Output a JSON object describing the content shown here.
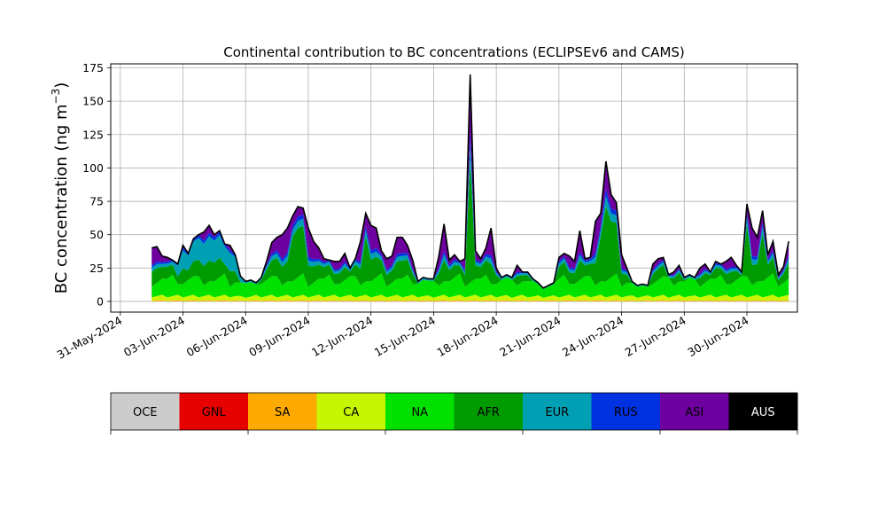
{
  "chart_data": {
    "type": "area",
    "stacked": true,
    "title": "Continental contribution to BC concentrations (ECLIPSEv6 and CAMS)",
    "ylabel_main": "BC concentration (ng m",
    "ylabel_sup": "−3",
    "ylabel_end": ")",
    "xlim": [
      "2024-05-30T13:00",
      "2024-07-02T10:00"
    ],
    "ylim": [
      -8,
      178
    ],
    "grid": true,
    "x_ticks": [
      "31-May-2024",
      "03-Jun-2024",
      "06-Jun-2024",
      "09-Jun-2024",
      "12-Jun-2024",
      "15-Jun-2024",
      "18-Jun-2024",
      "21-Jun-2024",
      "24-Jun-2024",
      "27-Jun-2024",
      "30-Jun-2024"
    ],
    "y_ticks": [
      0,
      25,
      50,
      75,
      100,
      125,
      150,
      175
    ],
    "legend_placement": "bottom colorbar",
    "categories": [
      {
        "name": "OCE",
        "color": "#cccccc"
      },
      {
        "name": "GNL",
        "color": "#e60000"
      },
      {
        "name": "SA",
        "color": "#ffaa00"
      },
      {
        "name": "CA",
        "color": "#c8f500"
      },
      {
        "name": "NA",
        "color": "#00e100"
      },
      {
        "name": "AFR",
        "color": "#009b00"
      },
      {
        "name": "EUR",
        "color": "#00a0b4"
      },
      {
        "name": "RUS",
        "color": "#0032e1"
      },
      {
        "name": "ASI",
        "color": "#6e00a0"
      },
      {
        "name": "AUS",
        "color": "#000000"
      }
    ],
    "total_series": {
      "name": "total",
      "points": [
        [
          "2024-06-01T12:00",
          40
        ],
        [
          "2024-06-01T18:00",
          41
        ],
        [
          "2024-06-02T00:00",
          34
        ],
        [
          "2024-06-02T06:00",
          33
        ],
        [
          "2024-06-02T12:00",
          31
        ],
        [
          "2024-06-02T18:00",
          28
        ],
        [
          "2024-06-03T00:00",
          42
        ],
        [
          "2024-06-03T06:00",
          36
        ],
        [
          "2024-06-03T12:00",
          47
        ],
        [
          "2024-06-03T18:00",
          50
        ],
        [
          "2024-06-04T00:00",
          52
        ],
        [
          "2024-06-04T06:00",
          57
        ],
        [
          "2024-06-04T12:00",
          50
        ],
        [
          "2024-06-04T18:00",
          53
        ],
        [
          "2024-06-05T00:00",
          43
        ],
        [
          "2024-06-05T06:00",
          42
        ],
        [
          "2024-06-05T12:00",
          35
        ],
        [
          "2024-06-05T18:00",
          19
        ],
        [
          "2024-06-06T00:00",
          15
        ],
        [
          "2024-06-06T06:00",
          16
        ],
        [
          "2024-06-06T12:00",
          14
        ],
        [
          "2024-06-06T18:00",
          18
        ],
        [
          "2024-06-07T00:00",
          30
        ],
        [
          "2024-06-07T06:00",
          44
        ],
        [
          "2024-06-07T12:00",
          48
        ],
        [
          "2024-06-07T18:00",
          50
        ],
        [
          "2024-06-08T00:00",
          55
        ],
        [
          "2024-06-08T06:00",
          64
        ],
        [
          "2024-06-08T12:00",
          71
        ],
        [
          "2024-06-08T18:00",
          70
        ],
        [
          "2024-06-09T00:00",
          55
        ],
        [
          "2024-06-09T06:00",
          45
        ],
        [
          "2024-06-09T12:00",
          40
        ],
        [
          "2024-06-09T18:00",
          32
        ],
        [
          "2024-06-10T00:00",
          31
        ],
        [
          "2024-06-10T06:00",
          30
        ],
        [
          "2024-06-10T12:00",
          30
        ],
        [
          "2024-06-10T18:00",
          36
        ],
        [
          "2024-06-11T00:00",
          25
        ],
        [
          "2024-06-11T06:00",
          32
        ],
        [
          "2024-06-11T12:00",
          45
        ],
        [
          "2024-06-11T18:00",
          66
        ],
        [
          "2024-06-12T00:00",
          57
        ],
        [
          "2024-06-12T06:00",
          55
        ],
        [
          "2024-06-12T12:00",
          38
        ],
        [
          "2024-06-12T18:00",
          32
        ],
        [
          "2024-06-13T00:00",
          34
        ],
        [
          "2024-06-13T06:00",
          48
        ],
        [
          "2024-06-13T12:00",
          48
        ],
        [
          "2024-06-13T18:00",
          42
        ],
        [
          "2024-06-14T00:00",
          31
        ],
        [
          "2024-06-14T06:00",
          15
        ],
        [
          "2024-06-14T12:00",
          18
        ],
        [
          "2024-06-14T18:00",
          17
        ],
        [
          "2024-06-15T00:00",
          17
        ],
        [
          "2024-06-15T06:00",
          34
        ],
        [
          "2024-06-15T12:00",
          58
        ],
        [
          "2024-06-15T18:00",
          31
        ],
        [
          "2024-06-16T00:00",
          35
        ],
        [
          "2024-06-16T06:00",
          30
        ],
        [
          "2024-06-16T12:00",
          32
        ],
        [
          "2024-06-16T18:00",
          170
        ],
        [
          "2024-06-17T00:00",
          38
        ],
        [
          "2024-06-17T06:00",
          32
        ],
        [
          "2024-06-17T12:00",
          40
        ],
        [
          "2024-06-17T18:00",
          55
        ],
        [
          "2024-06-18T00:00",
          25
        ],
        [
          "2024-06-18T06:00",
          18
        ],
        [
          "2024-06-18T12:00",
          20
        ],
        [
          "2024-06-18T18:00",
          18
        ],
        [
          "2024-06-19T00:00",
          27
        ],
        [
          "2024-06-19T06:00",
          22
        ],
        [
          "2024-06-19T12:00",
          22
        ],
        [
          "2024-06-19T18:00",
          17
        ],
        [
          "2024-06-20T00:00",
          14
        ],
        [
          "2024-06-20T06:00",
          10
        ],
        [
          "2024-06-20T12:00",
          12
        ],
        [
          "2024-06-20T18:00",
          14
        ],
        [
          "2024-06-21T00:00",
          33
        ],
        [
          "2024-06-21T06:00",
          36
        ],
        [
          "2024-06-21T12:00",
          34
        ],
        [
          "2024-06-21T18:00",
          30
        ],
        [
          "2024-06-22T00:00",
          53
        ],
        [
          "2024-06-22T06:00",
          32
        ],
        [
          "2024-06-22T12:00",
          33
        ],
        [
          "2024-06-22T18:00",
          60
        ],
        [
          "2024-06-23T00:00",
          66
        ],
        [
          "2024-06-23T06:00",
          105
        ],
        [
          "2024-06-23T12:00",
          80
        ],
        [
          "2024-06-23T18:00",
          74
        ],
        [
          "2024-06-24T00:00",
          35
        ],
        [
          "2024-06-24T06:00",
          25
        ],
        [
          "2024-06-24T12:00",
          15
        ],
        [
          "2024-06-24T18:00",
          12
        ],
        [
          "2024-06-25T00:00",
          13
        ],
        [
          "2024-06-25T06:00",
          12
        ],
        [
          "2024-06-25T12:00",
          28
        ],
        [
          "2024-06-25T18:00",
          32
        ],
        [
          "2024-06-26T00:00",
          33
        ],
        [
          "2024-06-26T06:00",
          20
        ],
        [
          "2024-06-26T12:00",
          22
        ],
        [
          "2024-06-26T18:00",
          27
        ],
        [
          "2024-06-27T00:00",
          18
        ],
        [
          "2024-06-27T06:00",
          20
        ],
        [
          "2024-06-27T12:00",
          18
        ],
        [
          "2024-06-27T18:00",
          25
        ],
        [
          "2024-06-28T00:00",
          28
        ],
        [
          "2024-06-28T06:00",
          22
        ],
        [
          "2024-06-28T12:00",
          30
        ],
        [
          "2024-06-28T18:00",
          28
        ],
        [
          "2024-06-29T00:00",
          30
        ],
        [
          "2024-06-29T06:00",
          33
        ],
        [
          "2024-06-29T12:00",
          27
        ],
        [
          "2024-06-29T18:00",
          22
        ],
        [
          "2024-06-30T00:00",
          73
        ],
        [
          "2024-06-30T06:00",
          55
        ],
        [
          "2024-06-30T12:00",
          48
        ],
        [
          "2024-06-30T18:00",
          68
        ],
        [
          "2024-07-01T00:00",
          35
        ],
        [
          "2024-07-01T06:00",
          45
        ],
        [
          "2024-07-01T12:00",
          20
        ],
        [
          "2024-07-01T18:00",
          26
        ],
        [
          "2024-07-02T00:00",
          45
        ]
      ]
    }
  }
}
